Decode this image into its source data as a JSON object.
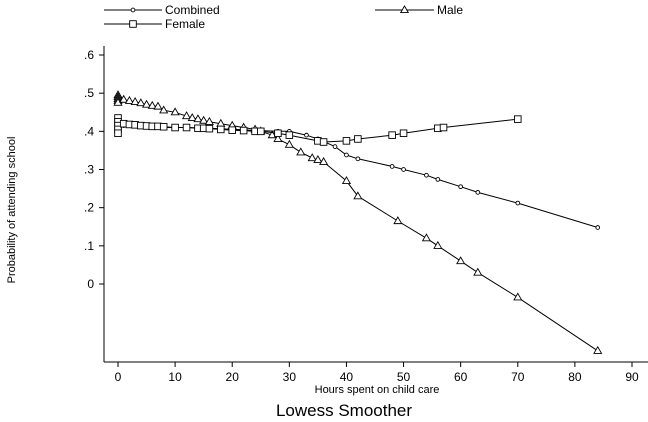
{
  "chart_data": {
    "type": "line",
    "caption": "Lowess Smoother",
    "xlabel": "Hours spent on child care",
    "ylabel": "Probability of attending school",
    "xlim": [
      -2,
      93
    ],
    "ylim": [
      -0.19,
      0.62
    ],
    "x_ticks": [
      0,
      10,
      20,
      30,
      40,
      50,
      60,
      70,
      80,
      90
    ],
    "y_ticks": [
      0,
      0.1,
      0.2,
      0.3,
      0.4,
      0.5,
      0.6
    ],
    "y_tick_labels": [
      "0",
      ".1",
      ".2",
      ".3",
      ".4",
      ".5",
      ".6"
    ],
    "grid": false,
    "legend_position": "top",
    "series": [
      {
        "name": "Combined",
        "marker": "circle",
        "x": [
          0,
          0,
          0,
          0,
          0,
          0.5,
          1,
          2,
          3,
          4,
          5,
          6,
          7,
          8,
          10,
          12,
          14,
          16,
          18,
          20,
          22,
          24,
          25,
          28,
          30,
          33,
          35,
          38,
          40,
          42,
          48,
          50,
          54,
          56,
          60,
          63,
          70,
          84
        ],
        "y": [
          0.43,
          0.425,
          0.42,
          0.415,
          0.41,
          0.42,
          0.415,
          0.415,
          0.415,
          0.414,
          0.413,
          0.412,
          0.411,
          0.41,
          0.41,
          0.41,
          0.409,
          0.408,
          0.407,
          0.405,
          0.404,
          0.402,
          0.402,
          0.4,
          0.4,
          0.39,
          0.38,
          0.36,
          0.338,
          0.328,
          0.308,
          0.3,
          0.285,
          0.274,
          0.255,
          0.24,
          0.212,
          0.148
        ]
      },
      {
        "name": "Male",
        "marker": "triangle",
        "x": [
          0,
          0,
          0,
          0,
          0,
          1,
          2,
          3,
          4,
          5,
          6,
          7,
          8,
          10,
          12,
          13,
          14,
          15,
          16,
          18,
          20,
          22,
          24,
          25,
          27,
          28,
          30,
          32,
          34,
          35,
          36,
          40,
          42,
          49,
          54,
          56,
          60,
          63,
          70,
          84
        ],
        "y": [
          0.495,
          0.49,
          0.485,
          0.48,
          0.475,
          0.483,
          0.48,
          0.477,
          0.474,
          0.47,
          0.467,
          0.465,
          0.455,
          0.45,
          0.44,
          0.435,
          0.432,
          0.428,
          0.425,
          0.42,
          0.415,
          0.41,
          0.405,
          0.4,
          0.39,
          0.38,
          0.365,
          0.345,
          0.33,
          0.325,
          0.32,
          0.27,
          0.23,
          0.165,
          0.12,
          0.1,
          0.06,
          0.03,
          -0.035,
          -0.175
        ]
      },
      {
        "name": "Female",
        "marker": "square",
        "x": [
          0,
          0,
          0,
          0,
          0,
          1,
          2,
          3,
          4,
          5,
          6,
          7,
          8,
          10,
          12,
          14,
          15,
          16,
          18,
          20,
          22,
          24,
          25,
          28,
          30,
          35,
          36,
          40,
          42,
          48,
          50,
          56,
          57,
          70
        ],
        "y": [
          0.435,
          0.425,
          0.415,
          0.405,
          0.395,
          0.42,
          0.418,
          0.417,
          0.415,
          0.414,
          0.413,
          0.413,
          0.412,
          0.41,
          0.41,
          0.408,
          0.408,
          0.407,
          0.405,
          0.403,
          0.402,
          0.4,
          0.4,
          0.395,
          0.39,
          0.375,
          0.372,
          0.375,
          0.38,
          0.39,
          0.395,
          0.408,
          0.41,
          0.432
        ]
      }
    ]
  }
}
